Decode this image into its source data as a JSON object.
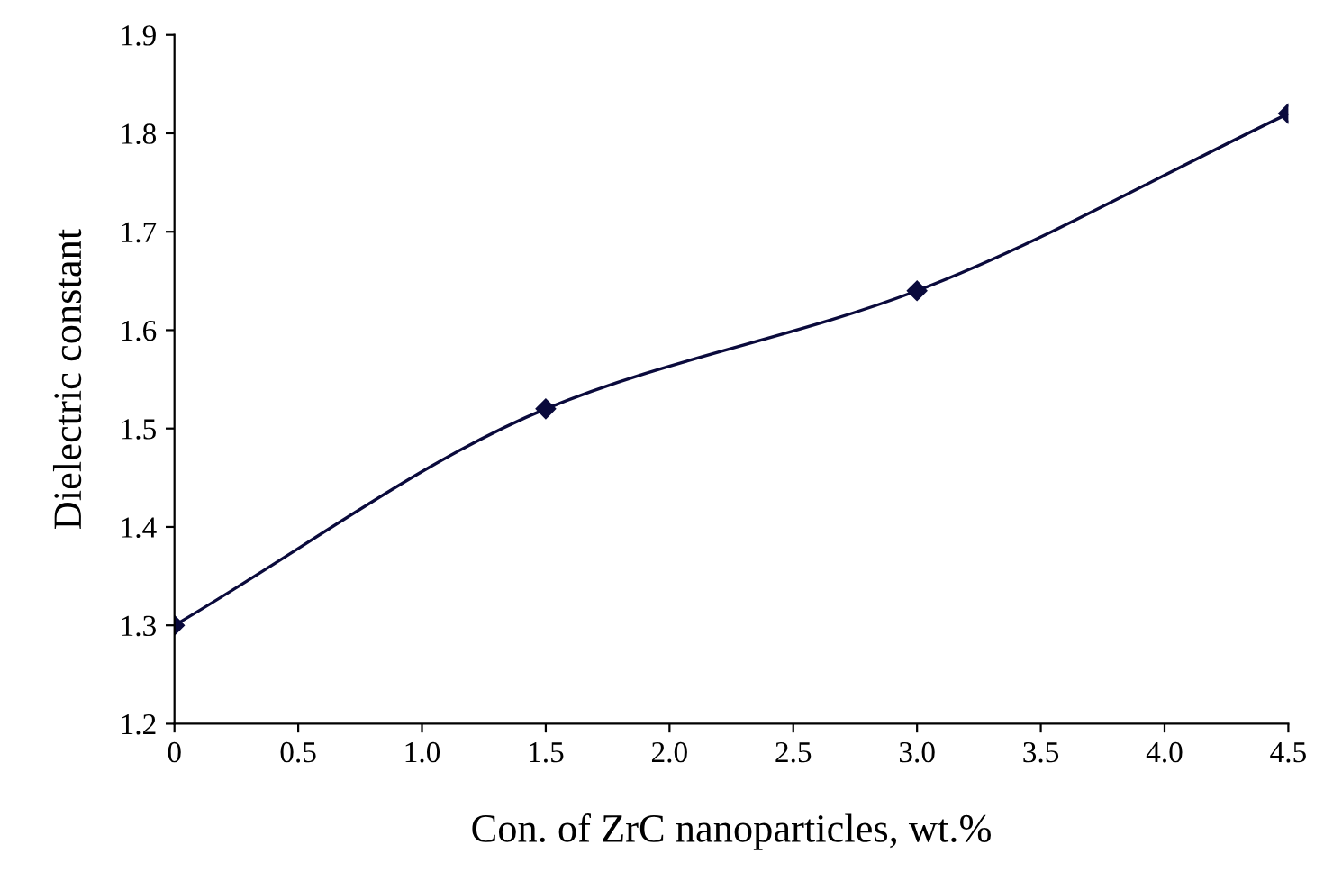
{
  "chart_data": {
    "type": "line",
    "xlabel": "Con. of ZrC nanoparticles, wt.%",
    "ylabel": "Dielectric constant",
    "x": [
      0,
      1.5,
      3.0,
      4.5
    ],
    "series": [
      {
        "color": "#0a0a3c",
        "values": [
          1.3,
          1.52,
          1.64,
          1.82
        ]
      }
    ],
    "xlim": [
      0,
      4.5
    ],
    "xticks": [
      0,
      0.5,
      {
        "value": 1.0,
        "label": "1.0"
      },
      1.5,
      {
        "value": 2.0,
        "label": "2.0"
      },
      2.5,
      {
        "value": 3.0,
        "label": "3.0"
      },
      3.5,
      {
        "value": 4.0,
        "label": "4.0"
      },
      4.5
    ],
    "ylim": [
      1.2,
      1.9
    ],
    "yticks": [
      1.2,
      1.3,
      1.4,
      1.5,
      1.6,
      1.7,
      1.8,
      1.9
    ],
    "grid": false,
    "legend": false,
    "marker": "diamond",
    "line_style": "solid"
  }
}
